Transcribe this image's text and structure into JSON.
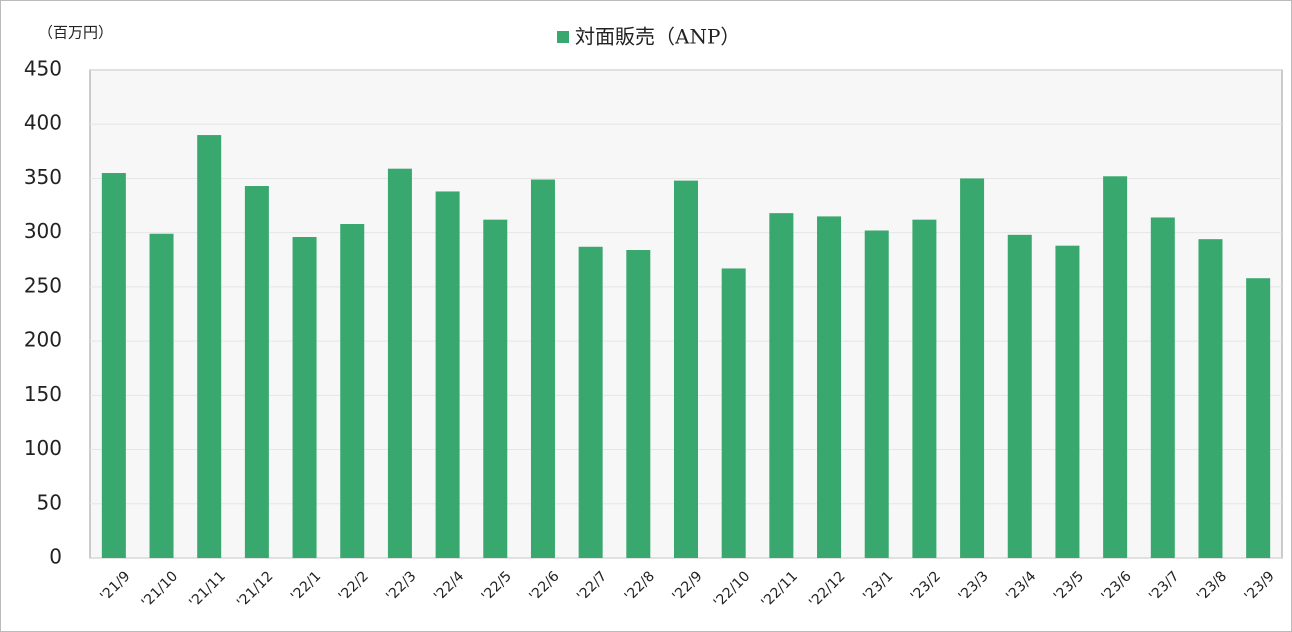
{
  "chart_data": {
    "type": "bar",
    "unit_label": "（百万円）",
    "categories": [
      "'21/9",
      "'21/10",
      "'21/11",
      "'21/12",
      "'22/1",
      "'22/2",
      "'22/3",
      "'22/4",
      "'22/5",
      "'22/6",
      "'22/7",
      "'22/8",
      "'22/9",
      "'22/10",
      "'22/11",
      "'22/12",
      "'23/1",
      "'23/2",
      "'23/3",
      "'23/4",
      "'23/5",
      "'23/6",
      "'23/7",
      "'23/8",
      "'23/9"
    ],
    "series": [
      {
        "name": "対面販売（ANP）",
        "color": "#38a86e",
        "values": [
          355,
          299,
          390,
          343,
          296,
          308,
          359,
          338,
          312,
          349,
          287,
          284,
          348,
          267,
          318,
          315,
          302,
          312,
          350,
          298,
          288,
          352,
          314,
          294,
          258
        ]
      }
    ],
    "ylim": [
      0,
      450
    ],
    "yticks": [
      0,
      50,
      100,
      150,
      200,
      250,
      300,
      350,
      400,
      450
    ],
    "grid": true,
    "legend": "top"
  }
}
